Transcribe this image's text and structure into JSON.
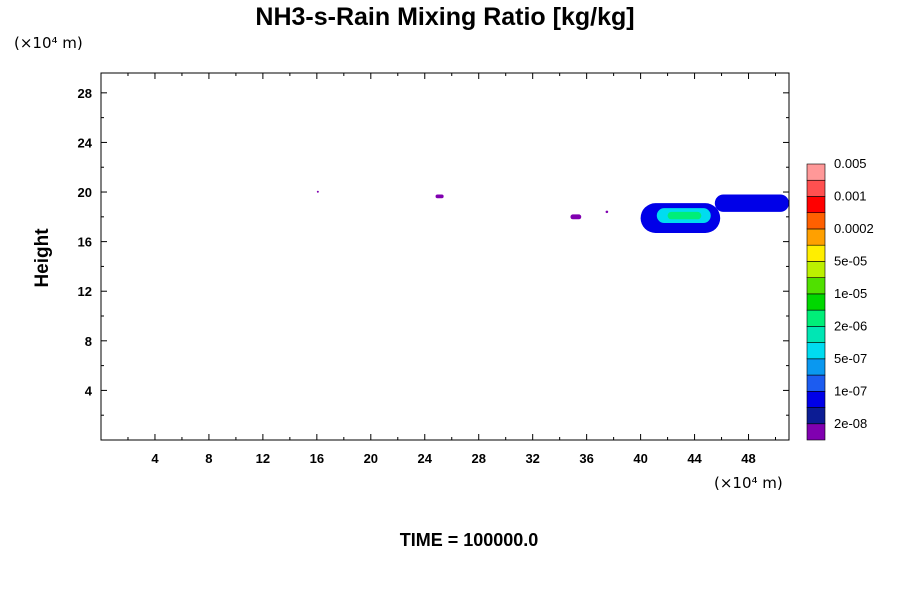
{
  "chart_data": {
    "type": "heatmap",
    "title": "NH3-s-Rain Mixing Ratio [kg/kg]",
    "xlabel": "",
    "ylabel": "Height",
    "x_unit": "(×10⁴ m)",
    "y_unit": "(×10⁴ m)",
    "xlim": [
      0,
      51
    ],
    "ylim": [
      0,
      29.6
    ],
    "x_ticks": [
      4,
      8,
      12,
      16,
      20,
      24,
      28,
      32,
      36,
      40,
      44,
      48
    ],
    "y_ticks": [
      4,
      8,
      12,
      16,
      20,
      24,
      28
    ],
    "colorbar": {
      "colors": [
        "#8000b0",
        "#0c1c94",
        "#0000e8",
        "#1c5cf0",
        "#0a98f0",
        "#00dcf0",
        "#00e6b4",
        "#00ee78",
        "#00d800",
        "#50e000",
        "#bcf000",
        "#ffee00",
        "#ffa000",
        "#ff6000",
        "#ff0000",
        "#ff5050",
        "#ff9898"
      ],
      "labels": [
        "2e-08",
        "1e-07",
        "5e-07",
        "2e-06",
        "1e-05",
        "5e-05",
        "0.0002",
        "0.001",
        "0.005"
      ]
    },
    "features": [
      {
        "x": [
          16,
          16.1
        ],
        "y": [
          20,
          20.1
        ],
        "level": 0
      },
      {
        "x": [
          24.8,
          25.4
        ],
        "y": [
          19.5,
          19.8
        ],
        "level": 0
      },
      {
        "x": [
          34.8,
          35.6
        ],
        "y": [
          17.8,
          18.2
        ],
        "level": 0
      },
      {
        "x": [
          37.4,
          37.6
        ],
        "y": [
          18.3,
          18.5
        ],
        "level": 0
      },
      {
        "x": [
          40,
          45.9
        ],
        "y": [
          16.7,
          19.1
        ],
        "level": 2
      },
      {
        "x": [
          41.2,
          45.2
        ],
        "y": [
          17.5,
          18.7
        ],
        "level": 5
      },
      {
        "x": [
          42,
          44.5
        ],
        "y": [
          17.8,
          18.4
        ],
        "level": 7
      },
      {
        "x": [
          45.5,
          51
        ],
        "y": [
          18.4,
          19.8
        ],
        "level": 2
      }
    ]
  },
  "footer": {
    "time_label": "TIME = 100000.0"
  }
}
